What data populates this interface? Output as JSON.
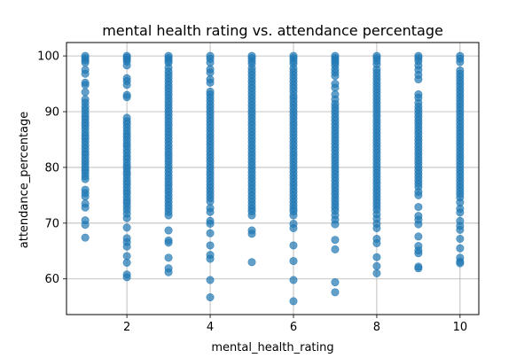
{
  "chart_data": {
    "type": "scatter",
    "title": "mental health rating vs. attendance percentage",
    "xlabel": "mental_health_rating",
    "ylabel": "attendance_percentage",
    "xlim": [
      0.55,
      10.45
    ],
    "ylim": [
      53.6,
      102.4
    ],
    "xticks": [
      2,
      4,
      6,
      8,
      10
    ],
    "yticks": [
      60,
      70,
      80,
      90,
      100
    ],
    "grid": true,
    "marker_color": "#1f77b4",
    "marker_alpha": 0.7,
    "points": [
      {
        "x": 1,
        "y_values": [
          100,
          99.6,
          99.2,
          98.8,
          97.5,
          96.8,
          95.2,
          94.8,
          93.5,
          92.2,
          91.6,
          90.9,
          90.3,
          89.7,
          89.1,
          88.6,
          88.0,
          87.5,
          86.9,
          86.3,
          85.7,
          85.2,
          84.6,
          84.0,
          83.4,
          82.8,
          82.3,
          81.7,
          81.1,
          80.6,
          80.0,
          79.5,
          79.0,
          78.4,
          77.9,
          76.0,
          75.4,
          74.8,
          73.5,
          72.8,
          70.5,
          69.7,
          67.4
        ]
      },
      {
        "x": 2,
        "y_values": [
          100,
          99.7,
          99.4,
          99.0,
          98.3,
          96.0,
          95.5,
          94.8,
          93.0,
          92.6,
          88.9,
          88.3,
          87.8,
          87.2,
          86.6,
          86.0,
          85.5,
          84.9,
          84.3,
          83.8,
          83.2,
          82.6,
          82.0,
          81.5,
          80.9,
          80.3,
          79.8,
          79.2,
          78.7,
          78.1,
          77.5,
          77.0,
          76.4,
          75.8,
          75.3,
          74.7,
          74.1,
          73.6,
          73.0,
          72.4,
          71.7,
          70.9,
          69.2,
          67.3,
          66.6,
          65.8,
          64.1,
          62.9,
          60.8,
          60.3
        ]
      },
      {
        "x": 3,
        "y_values": [
          100,
          99.6,
          99.2,
          98.8,
          97.9,
          97.2,
          96.6,
          96.0,
          95.4,
          94.8,
          94.2,
          93.6,
          93.0,
          92.4,
          91.8,
          91.2,
          90.6,
          90.0,
          89.4,
          88.8,
          88.2,
          87.6,
          87.0,
          86.4,
          85.8,
          85.2,
          84.6,
          84.0,
          83.4,
          82.8,
          82.2,
          81.6,
          81.0,
          80.4,
          79.8,
          79.2,
          78.6,
          78.0,
          77.4,
          76.8,
          76.2,
          75.6,
          75.0,
          74.4,
          73.8,
          73.2,
          72.6,
          72.0,
          71.4,
          68.7,
          66.9,
          66.5,
          63.8,
          61.9,
          61.2
        ]
      },
      {
        "x": 4,
        "y_values": [
          100,
          99.5,
          98.8,
          97.6,
          97.0,
          95.8,
          95.2,
          93.6,
          93.1,
          92.5,
          91.9,
          91.3,
          90.7,
          90.1,
          89.5,
          88.9,
          88.3,
          87.7,
          87.1,
          86.5,
          85.9,
          85.3,
          84.7,
          84.1,
          83.5,
          82.9,
          82.3,
          81.7,
          81.1,
          80.5,
          79.9,
          79.3,
          78.7,
          78.1,
          77.5,
          76.9,
          76.3,
          75.7,
          75.1,
          74.5,
          73.9,
          72.7,
          72.0,
          70.4,
          69.9,
          68.2,
          66.0,
          64.3,
          63.6,
          59.8,
          56.7
        ]
      },
      {
        "x": 5,
        "y_values": [
          100,
          99.6,
          99.1,
          98.6,
          97.8,
          97.2,
          96.6,
          96.0,
          95.4,
          94.8,
          94.2,
          93.6,
          93.0,
          92.4,
          91.8,
          91.2,
          90.6,
          90.0,
          89.4,
          88.8,
          88.2,
          87.6,
          87.0,
          86.4,
          85.8,
          85.2,
          84.6,
          84.0,
          83.4,
          82.8,
          82.2,
          81.6,
          81.0,
          80.4,
          79.8,
          79.2,
          78.6,
          78.0,
          77.4,
          76.8,
          76.2,
          75.6,
          75.0,
          74.4,
          73.8,
          73.2,
          72.6,
          72.1,
          71.4,
          68.7,
          68.1,
          63.0
        ]
      },
      {
        "x": 6,
        "y_values": [
          100,
          99.6,
          99.1,
          98.6,
          97.8,
          97.2,
          96.6,
          96.0,
          95.4,
          94.8,
          94.2,
          93.6,
          92.9,
          92.4,
          91.8,
          91.2,
          90.6,
          90.0,
          89.4,
          88.8,
          88.2,
          87.6,
          87.0,
          86.4,
          85.8,
          85.2,
          84.6,
          84.0,
          83.4,
          82.8,
          82.2,
          81.6,
          81.0,
          80.4,
          79.8,
          79.2,
          78.6,
          78.0,
          77.4,
          76.8,
          76.2,
          75.6,
          75.0,
          74.4,
          73.8,
          73.2,
          72.6,
          72.1,
          71.4,
          69.9,
          69.1,
          66.0,
          63.2,
          59.8,
          56.0
        ]
      },
      {
        "x": 7,
        "y_values": [
          100,
          99.6,
          99.2,
          98.8,
          98.3,
          97.6,
          97.0,
          96.4,
          95.0,
          94.3,
          93.1,
          92.2,
          91.4,
          90.8,
          90.2,
          89.6,
          89.0,
          88.4,
          87.8,
          87.2,
          86.6,
          86.0,
          85.4,
          84.8,
          84.2,
          83.6,
          83.0,
          82.4,
          81.8,
          81.2,
          80.6,
          80.0,
          79.4,
          78.8,
          78.2,
          77.6,
          77.0,
          76.4,
          75.8,
          75.2,
          74.6,
          74.0,
          73.4,
          72.8,
          72.2,
          71.4,
          70.6,
          69.8,
          67.0,
          65.3,
          59.4,
          57.6
        ]
      },
      {
        "x": 8,
        "y_values": [
          100,
          99.6,
          99.1,
          98.5,
          97.6,
          97.0,
          96.4,
          95.8,
          95.2,
          94.6,
          94.0,
          93.4,
          92.8,
          92.2,
          91.6,
          91.0,
          90.4,
          89.8,
          89.2,
          88.6,
          88.0,
          87.4,
          86.8,
          86.2,
          85.6,
          85.0,
          84.4,
          83.8,
          83.2,
          82.6,
          82.0,
          81.4,
          80.8,
          80.2,
          79.6,
          79.0,
          78.4,
          77.8,
          77.2,
          76.6,
          76.0,
          75.4,
          74.8,
          74.2,
          73.6,
          73.0,
          72.4,
          71.6,
          70.8,
          69.9,
          69.1,
          67.2,
          66.4,
          63.9,
          62.3,
          61.0
        ]
      },
      {
        "x": 9,
        "y_values": [
          100,
          99.6,
          99.1,
          98.3,
          97.5,
          96.6,
          95.8,
          93.1,
          92.5,
          91.6,
          90.9,
          90.3,
          89.7,
          89.1,
          88.5,
          87.9,
          87.3,
          86.7,
          86.1,
          85.5,
          84.9,
          84.3,
          83.7,
          83.1,
          82.5,
          81.9,
          81.3,
          80.7,
          80.1,
          79.5,
          78.9,
          78.3,
          77.7,
          77.1,
          76.5,
          75.6,
          75.0,
          72.9,
          71.3,
          70.6,
          69.8,
          67.6,
          65.9,
          65.1,
          64.6,
          62.2,
          61.9
        ]
      },
      {
        "x": 10,
        "y_values": [
          100,
          99.5,
          98.9,
          97.4,
          96.8,
          96.2,
          95.6,
          95.0,
          94.4,
          93.8,
          93.2,
          92.6,
          92.0,
          91.4,
          90.8,
          90.2,
          89.6,
          89.0,
          88.4,
          87.8,
          87.2,
          86.6,
          86.0,
          85.4,
          84.8,
          84.2,
          83.6,
          83.0,
          82.4,
          81.8,
          81.2,
          80.6,
          80.0,
          79.4,
          78.8,
          78.2,
          77.6,
          77.0,
          76.4,
          75.8,
          75.2,
          74.6,
          73.7,
          72.6,
          71.9,
          70.4,
          69.5,
          68.8,
          67.2,
          65.5,
          63.8,
          63.1,
          62.8
        ]
      }
    ]
  }
}
